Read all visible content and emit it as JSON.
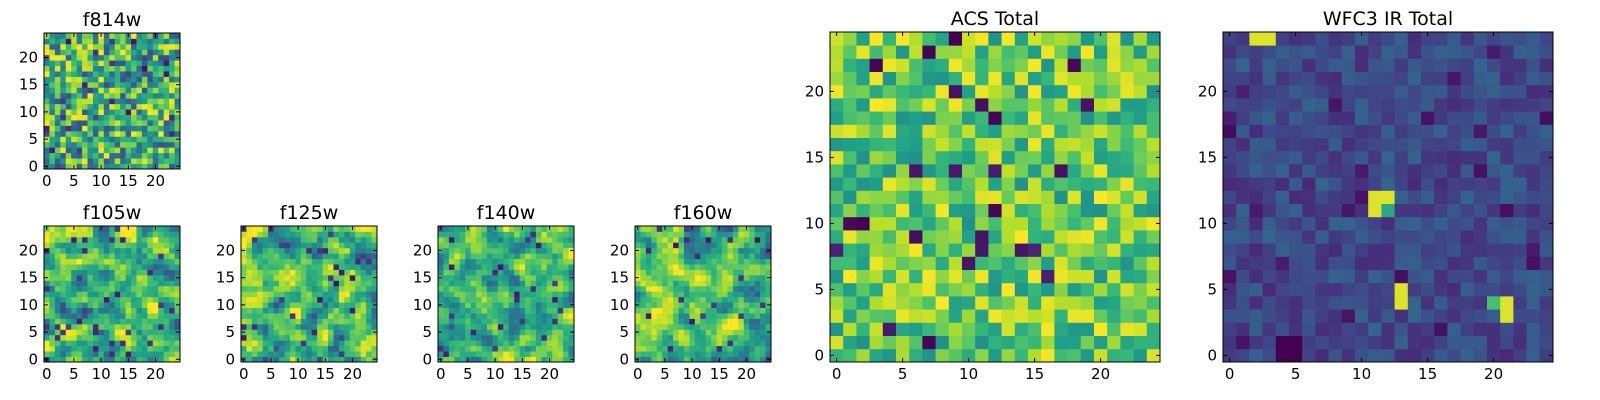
{
  "chart_data": [
    {
      "type": "heatmap",
      "id": "f814w",
      "title": "f814w",
      "grid_size": 25,
      "origin": "lower",
      "colormap": "viridis",
      "style": "uniform",
      "seed": 11,
      "xticks": [
        "0",
        "5",
        "10",
        "15",
        "20"
      ],
      "yticks": [
        "0",
        "5",
        "10",
        "15",
        "20"
      ],
      "xlim": [
        -0.5,
        24.5
      ],
      "ylim": [
        -0.5,
        24.5
      ]
    },
    {
      "type": "heatmap",
      "id": "f105w",
      "title": "f105w",
      "grid_size": 25,
      "origin": "lower",
      "colormap": "viridis",
      "style": "smooth",
      "seed": 23,
      "xticks": [
        "0",
        "5",
        "10",
        "15",
        "20"
      ],
      "yticks": [
        "0",
        "5",
        "10",
        "15",
        "20"
      ],
      "xlim": [
        -0.5,
        24.5
      ],
      "ylim": [
        -0.5,
        24.5
      ]
    },
    {
      "type": "heatmap",
      "id": "f125w",
      "title": "f125w",
      "grid_size": 25,
      "origin": "lower",
      "colormap": "viridis",
      "style": "smooth",
      "seed": 37,
      "xticks": [
        "0",
        "5",
        "10",
        "15",
        "20"
      ],
      "yticks": [
        "0",
        "5",
        "10",
        "15",
        "20"
      ],
      "xlim": [
        -0.5,
        24.5
      ],
      "ylim": [
        -0.5,
        24.5
      ]
    },
    {
      "type": "heatmap",
      "id": "f140w",
      "title": "f140w",
      "grid_size": 25,
      "origin": "lower",
      "colormap": "viridis",
      "style": "smooth",
      "seed": 41,
      "xticks": [
        "0",
        "5",
        "10",
        "15",
        "20"
      ],
      "yticks": [
        "0",
        "5",
        "10",
        "15",
        "20"
      ],
      "xlim": [
        -0.5,
        24.5
      ],
      "ylim": [
        -0.5,
        24.5
      ]
    },
    {
      "type": "heatmap",
      "id": "f160w",
      "title": "f160w",
      "grid_size": 25,
      "origin": "lower",
      "colormap": "viridis",
      "style": "smooth",
      "seed": 53,
      "xticks": [
        "0",
        "5",
        "10",
        "15",
        "20"
      ],
      "yticks": [
        "0",
        "5",
        "10",
        "15",
        "20"
      ],
      "xlim": [
        -0.5,
        24.5
      ],
      "ylim": [
        -0.5,
        24.5
      ]
    },
    {
      "type": "heatmap",
      "id": "acs-total",
      "title": "ACS Total",
      "grid_size": 25,
      "origin": "lower",
      "colormap": "viridis",
      "style": "bright",
      "seed": 67,
      "xticks": [
        "0",
        "5",
        "10",
        "15",
        "20"
      ],
      "yticks": [
        "0",
        "5",
        "10",
        "15",
        "20"
      ],
      "xlim": [
        -0.5,
        24.5
      ],
      "ylim": [
        -0.5,
        24.5
      ]
    },
    {
      "type": "heatmap",
      "id": "wfc3-ir-total",
      "title": "WFC3 IR Total",
      "grid_size": 25,
      "origin": "lower",
      "colormap": "viridis",
      "style": "dark",
      "seed": 79,
      "xticks": [
        "0",
        "5",
        "10",
        "15",
        "20"
      ],
      "yticks": [
        "0",
        "5",
        "10",
        "15",
        "20"
      ],
      "xlim": [
        -0.5,
        24.5
      ],
      "ylim": [
        -0.5,
        24.5
      ],
      "bright_pixels": [
        [
          2,
          24,
          0.95
        ],
        [
          3,
          24,
          0.95
        ],
        [
          11,
          12,
          0.95
        ],
        [
          12,
          12,
          0.95
        ],
        [
          11,
          11,
          0.95
        ],
        [
          12,
          11,
          0.6
        ],
        [
          13,
          5,
          0.95
        ],
        [
          13,
          4,
          0.95
        ],
        [
          20,
          4,
          0.7
        ],
        [
          21,
          4,
          0.95
        ],
        [
          21,
          3,
          0.95
        ]
      ],
      "dark_pixels": [
        [
          4,
          1,
          0.0
        ],
        [
          5,
          1,
          0.0
        ],
        [
          4,
          0,
          0.0
        ],
        [
          5,
          0,
          0.0
        ],
        [
          0,
          6,
          0.05
        ]
      ]
    }
  ]
}
